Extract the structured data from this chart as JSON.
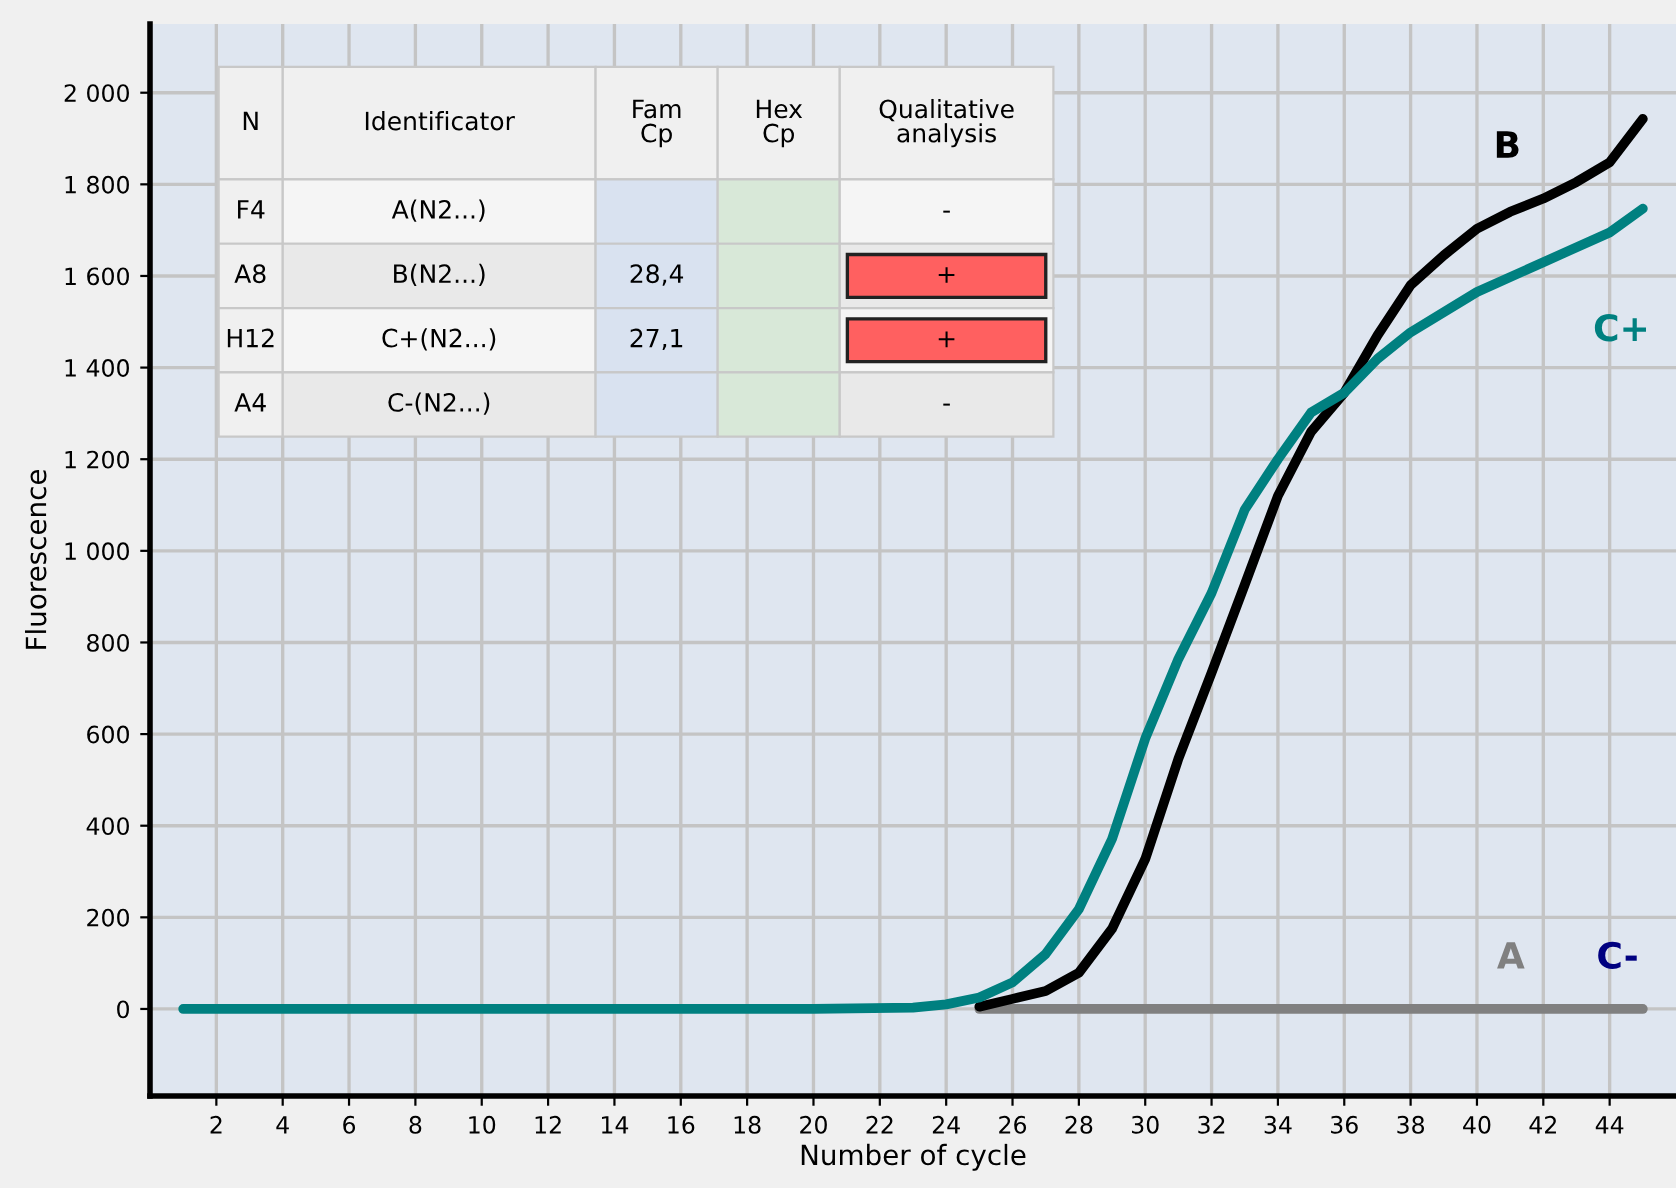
{
  "chart_data": {
    "type": "line",
    "xlabel": "Number of cycle",
    "ylabel": "Fluorescence",
    "xlim": [
      0,
      46
    ],
    "ylim": [
      -190,
      2150
    ],
    "xticks": [
      2,
      4,
      6,
      8,
      10,
      12,
      14,
      16,
      18,
      20,
      22,
      24,
      26,
      28,
      30,
      32,
      34,
      36,
      38,
      40,
      42,
      44
    ],
    "yticks": [
      0,
      200,
      400,
      600,
      800,
      {
        "value": 1000,
        "label": "1 000"
      },
      {
        "value": 1200,
        "label": "1 200"
      },
      {
        "value": 1400,
        "label": "1 400"
      },
      {
        "value": 1600,
        "label": "1 600"
      },
      {
        "value": 1800,
        "label": "1 800"
      },
      {
        "value": 2000,
        "label": "2 000"
      }
    ],
    "grid": true,
    "legend": false,
    "marker": "none",
    "line_style": "solid",
    "series": [
      {
        "name": "A",
        "color": "#808080",
        "x": [
          25,
          30,
          35,
          40,
          45
        ],
        "values": [
          0,
          0,
          0,
          0,
          0
        ]
      },
      {
        "name": "C-",
        "color": "#000080"
      },
      {
        "name": "B",
        "color": "#000000",
        "x": [
          25,
          26,
          27,
          28,
          29,
          30,
          31,
          32,
          33,
          34,
          35,
          36,
          37,
          38,
          39,
          40,
          41,
          42,
          43,
          44,
          45
        ],
        "values": [
          5,
          22,
          39,
          79,
          175,
          327,
          546,
          734,
          926,
          1120,
          1260,
          1345,
          1470,
          1580,
          1645,
          1703,
          1740,
          1769,
          1805,
          1848,
          1943
        ]
      },
      {
        "name": "C+",
        "color": "#008080",
        "x": [
          1,
          10,
          20,
          23,
          24,
          25,
          26,
          27,
          28,
          29,
          30,
          31,
          32,
          33,
          34,
          35,
          36,
          37,
          38,
          40,
          42,
          44,
          45
        ],
        "values": [
          0,
          0,
          0,
          3,
          10,
          25,
          58,
          120,
          218,
          371,
          590,
          764,
          908,
          1090,
          1200,
          1302,
          1345,
          1419,
          1477,
          1565,
          1630,
          1695,
          1747
        ]
      }
    ],
    "annotations": [
      "N",
      "Identificator",
      "Fam\nCp",
      "Hex\nCp",
      "Qualitative\nanalysis",
      "F4",
      "A(N2...)",
      null,
      null,
      "-",
      "A8",
      "B(N2...)",
      "28,4",
      null,
      "+",
      "H12",
      "C+(N2...)",
      "27,1",
      null,
      "+",
      "A4",
      "C-(N2...)",
      null,
      null,
      "-"
    ]
  }
}
